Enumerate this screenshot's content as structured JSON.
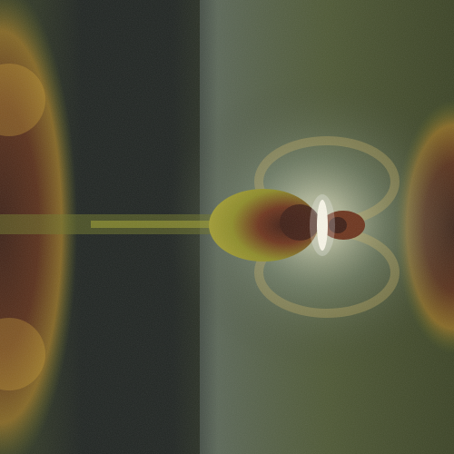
{
  "image": {
    "kind": "fractal-render",
    "palette": {
      "background": "#2b3320",
      "dark_band": "#1a1f1c",
      "halo": "#a8b4a0",
      "glow": "#f4f0d8",
      "olive": "#8c8c28",
      "ochre": "#c8a030",
      "rust": "#6a2e1a",
      "dark_red": "#3a1a10",
      "slate": "#607070"
    }
  }
}
